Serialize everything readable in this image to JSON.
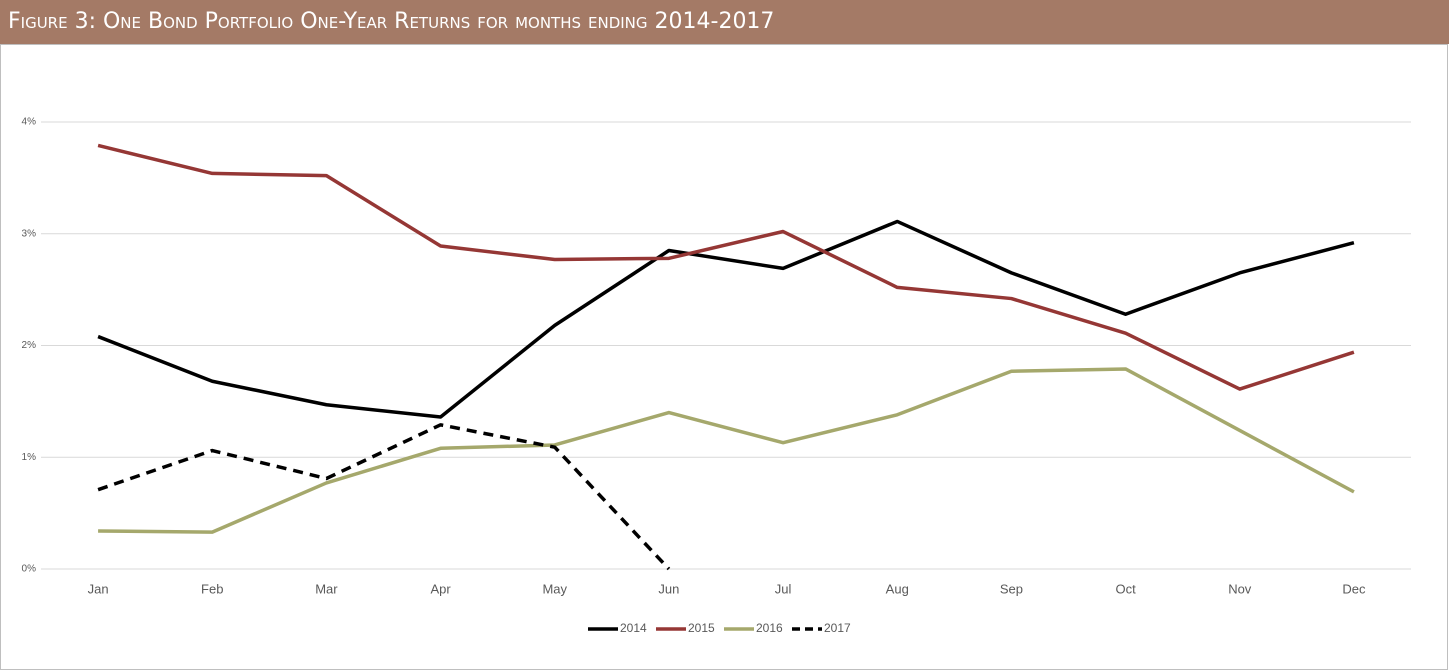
{
  "chart_data": {
    "type": "line",
    "title": "Figure 3: One Bond Portfolio One-Year Returns for months ending 2014-2017",
    "categories": [
      "Jan",
      "Feb",
      "Mar",
      "Apr",
      "May",
      "Jun",
      "Jul",
      "Aug",
      "Sep",
      "Oct",
      "Nov",
      "Dec"
    ],
    "series": [
      {
        "name": "2014",
        "color": "#000000",
        "dashed": false,
        "values": [
          2.08,
          1.68,
          1.47,
          1.36,
          2.18,
          2.85,
          2.69,
          3.11,
          2.65,
          2.28,
          2.65,
          2.92
        ]
      },
      {
        "name": "2015",
        "color": "#953735",
        "dashed": false,
        "values": [
          3.79,
          3.54,
          3.52,
          2.89,
          2.77,
          2.78,
          3.02,
          2.52,
          2.42,
          2.11,
          1.61,
          1.94
        ]
      },
      {
        "name": "2016",
        "color": "#a5a86c",
        "dashed": false,
        "values": [
          0.34,
          0.33,
          0.77,
          1.08,
          1.11,
          1.4,
          1.13,
          1.38,
          1.77,
          1.79,
          1.24,
          0.69
        ]
      },
      {
        "name": "2017",
        "color": "#000000",
        "dashed": true,
        "values": [
          0.71,
          1.06,
          0.81,
          1.29,
          1.09,
          0,
          null,
          null,
          null,
          null,
          null,
          null
        ]
      }
    ],
    "ylim": [
      0,
      4
    ],
    "yticks": [
      {
        "value": 0,
        "label": "0%"
      },
      {
        "value": 1,
        "label": "1%"
      },
      {
        "value": 2,
        "label": "2%"
      },
      {
        "value": 3,
        "label": "3%"
      },
      {
        "value": 4,
        "label": "4%"
      }
    ],
    "grid": true,
    "legend": "bottom"
  }
}
